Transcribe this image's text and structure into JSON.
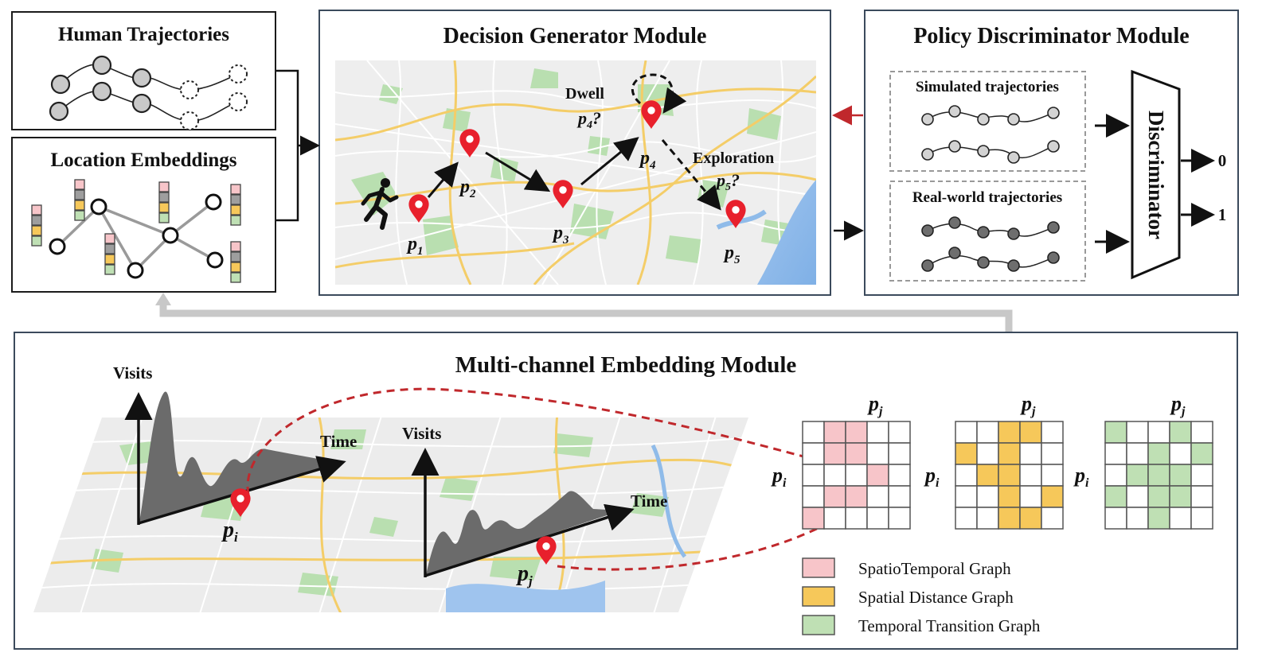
{
  "human_trajectories": {
    "title": "Human Trajectories"
  },
  "location_embeddings": {
    "title": "Location Embeddings"
  },
  "decision_generator": {
    "title": "Decision Generator Module",
    "dwell_label": "Dwell",
    "dwell_question": "p4?",
    "exploration_label": "Exploration",
    "exploration_question": "p5?",
    "points": [
      "p1",
      "p2",
      "p3",
      "p4",
      "p5"
    ]
  },
  "policy_discriminator": {
    "title": "Policy Discriminator Module",
    "simulated_label": "Simulated trajectories",
    "real_label": "Real-world trajectories",
    "discriminator_label": "Discriminator",
    "output_0": "0",
    "output_1": "1"
  },
  "embedding_module": {
    "title": "Multi-channel Embedding Module",
    "axis_visits": "Visits",
    "axis_time": "Time",
    "point_i": "pi",
    "point_j": "pj",
    "matrix_row_label": "pi",
    "matrix_col_label": "pj"
  },
  "legend": [
    {
      "label": "SpatioTemporal Graph",
      "color": "#f7c5c9"
    },
    {
      "label": "Spatial Distance Graph",
      "color": "#f6c85a"
    },
    {
      "label": "Temporal Transition Graph",
      "color": "#bfe0b4"
    }
  ],
  "colors": {
    "pin_red": "#e8202c",
    "arrow_red": "#c0282c",
    "gray_arrow": "#c8c8c8"
  }
}
